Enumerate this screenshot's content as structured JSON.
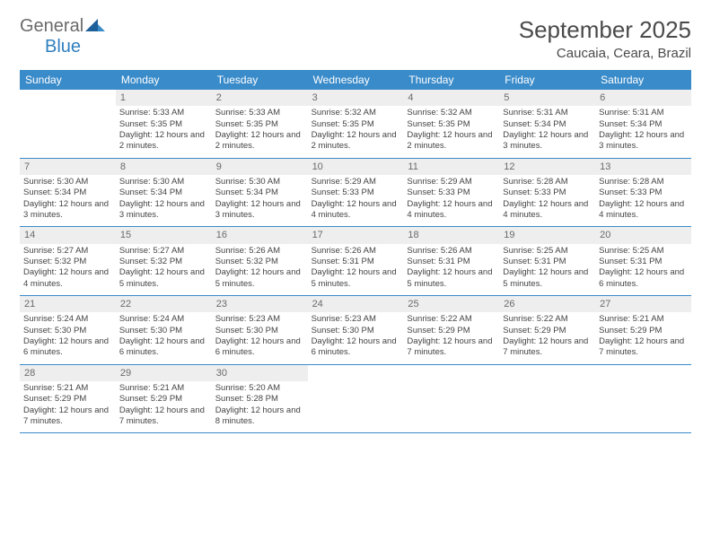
{
  "brand": {
    "part1": "General",
    "part2": "Blue"
  },
  "title": "September 2025",
  "location": "Caucaia, Ceara, Brazil",
  "colors": {
    "header_bg": "#3a8bc9",
    "header_text": "#ffffff",
    "daynum_bg": "#eeeeee",
    "text": "#444444",
    "brand_gray": "#6a6a6a",
    "brand_blue": "#2f7fbf",
    "rule": "#3a8bc9"
  },
  "day_names": [
    "Sunday",
    "Monday",
    "Tuesday",
    "Wednesday",
    "Thursday",
    "Friday",
    "Saturday"
  ],
  "weeks": [
    {
      "cells": [
        {
          "n": "",
          "sr": "",
          "ss": "",
          "dl": ""
        },
        {
          "n": "1",
          "sr": "Sunrise: 5:33 AM",
          "ss": "Sunset: 5:35 PM",
          "dl": "Daylight: 12 hours and 2 minutes."
        },
        {
          "n": "2",
          "sr": "Sunrise: 5:33 AM",
          "ss": "Sunset: 5:35 PM",
          "dl": "Daylight: 12 hours and 2 minutes."
        },
        {
          "n": "3",
          "sr": "Sunrise: 5:32 AM",
          "ss": "Sunset: 5:35 PM",
          "dl": "Daylight: 12 hours and 2 minutes."
        },
        {
          "n": "4",
          "sr": "Sunrise: 5:32 AM",
          "ss": "Sunset: 5:35 PM",
          "dl": "Daylight: 12 hours and 2 minutes."
        },
        {
          "n": "5",
          "sr": "Sunrise: 5:31 AM",
          "ss": "Sunset: 5:34 PM",
          "dl": "Daylight: 12 hours and 3 minutes."
        },
        {
          "n": "6",
          "sr": "Sunrise: 5:31 AM",
          "ss": "Sunset: 5:34 PM",
          "dl": "Daylight: 12 hours and 3 minutes."
        }
      ]
    },
    {
      "cells": [
        {
          "n": "7",
          "sr": "Sunrise: 5:30 AM",
          "ss": "Sunset: 5:34 PM",
          "dl": "Daylight: 12 hours and 3 minutes."
        },
        {
          "n": "8",
          "sr": "Sunrise: 5:30 AM",
          "ss": "Sunset: 5:34 PM",
          "dl": "Daylight: 12 hours and 3 minutes."
        },
        {
          "n": "9",
          "sr": "Sunrise: 5:30 AM",
          "ss": "Sunset: 5:34 PM",
          "dl": "Daylight: 12 hours and 3 minutes."
        },
        {
          "n": "10",
          "sr": "Sunrise: 5:29 AM",
          "ss": "Sunset: 5:33 PM",
          "dl": "Daylight: 12 hours and 4 minutes."
        },
        {
          "n": "11",
          "sr": "Sunrise: 5:29 AM",
          "ss": "Sunset: 5:33 PM",
          "dl": "Daylight: 12 hours and 4 minutes."
        },
        {
          "n": "12",
          "sr": "Sunrise: 5:28 AM",
          "ss": "Sunset: 5:33 PM",
          "dl": "Daylight: 12 hours and 4 minutes."
        },
        {
          "n": "13",
          "sr": "Sunrise: 5:28 AM",
          "ss": "Sunset: 5:33 PM",
          "dl": "Daylight: 12 hours and 4 minutes."
        }
      ]
    },
    {
      "cells": [
        {
          "n": "14",
          "sr": "Sunrise: 5:27 AM",
          "ss": "Sunset: 5:32 PM",
          "dl": "Daylight: 12 hours and 4 minutes."
        },
        {
          "n": "15",
          "sr": "Sunrise: 5:27 AM",
          "ss": "Sunset: 5:32 PM",
          "dl": "Daylight: 12 hours and 5 minutes."
        },
        {
          "n": "16",
          "sr": "Sunrise: 5:26 AM",
          "ss": "Sunset: 5:32 PM",
          "dl": "Daylight: 12 hours and 5 minutes."
        },
        {
          "n": "17",
          "sr": "Sunrise: 5:26 AM",
          "ss": "Sunset: 5:31 PM",
          "dl": "Daylight: 12 hours and 5 minutes."
        },
        {
          "n": "18",
          "sr": "Sunrise: 5:26 AM",
          "ss": "Sunset: 5:31 PM",
          "dl": "Daylight: 12 hours and 5 minutes."
        },
        {
          "n": "19",
          "sr": "Sunrise: 5:25 AM",
          "ss": "Sunset: 5:31 PM",
          "dl": "Daylight: 12 hours and 5 minutes."
        },
        {
          "n": "20",
          "sr": "Sunrise: 5:25 AM",
          "ss": "Sunset: 5:31 PM",
          "dl": "Daylight: 12 hours and 6 minutes."
        }
      ]
    },
    {
      "cells": [
        {
          "n": "21",
          "sr": "Sunrise: 5:24 AM",
          "ss": "Sunset: 5:30 PM",
          "dl": "Daylight: 12 hours and 6 minutes."
        },
        {
          "n": "22",
          "sr": "Sunrise: 5:24 AM",
          "ss": "Sunset: 5:30 PM",
          "dl": "Daylight: 12 hours and 6 minutes."
        },
        {
          "n": "23",
          "sr": "Sunrise: 5:23 AM",
          "ss": "Sunset: 5:30 PM",
          "dl": "Daylight: 12 hours and 6 minutes."
        },
        {
          "n": "24",
          "sr": "Sunrise: 5:23 AM",
          "ss": "Sunset: 5:30 PM",
          "dl": "Daylight: 12 hours and 6 minutes."
        },
        {
          "n": "25",
          "sr": "Sunrise: 5:22 AM",
          "ss": "Sunset: 5:29 PM",
          "dl": "Daylight: 12 hours and 7 minutes."
        },
        {
          "n": "26",
          "sr": "Sunrise: 5:22 AM",
          "ss": "Sunset: 5:29 PM",
          "dl": "Daylight: 12 hours and 7 minutes."
        },
        {
          "n": "27",
          "sr": "Sunrise: 5:21 AM",
          "ss": "Sunset: 5:29 PM",
          "dl": "Daylight: 12 hours and 7 minutes."
        }
      ]
    },
    {
      "cells": [
        {
          "n": "28",
          "sr": "Sunrise: 5:21 AM",
          "ss": "Sunset: 5:29 PM",
          "dl": "Daylight: 12 hours and 7 minutes."
        },
        {
          "n": "29",
          "sr": "Sunrise: 5:21 AM",
          "ss": "Sunset: 5:29 PM",
          "dl": "Daylight: 12 hours and 7 minutes."
        },
        {
          "n": "30",
          "sr": "Sunrise: 5:20 AM",
          "ss": "Sunset: 5:28 PM",
          "dl": "Daylight: 12 hours and 8 minutes."
        },
        {
          "n": "",
          "sr": "",
          "ss": "",
          "dl": ""
        },
        {
          "n": "",
          "sr": "",
          "ss": "",
          "dl": ""
        },
        {
          "n": "",
          "sr": "",
          "ss": "",
          "dl": ""
        },
        {
          "n": "",
          "sr": "",
          "ss": "",
          "dl": ""
        }
      ]
    }
  ]
}
